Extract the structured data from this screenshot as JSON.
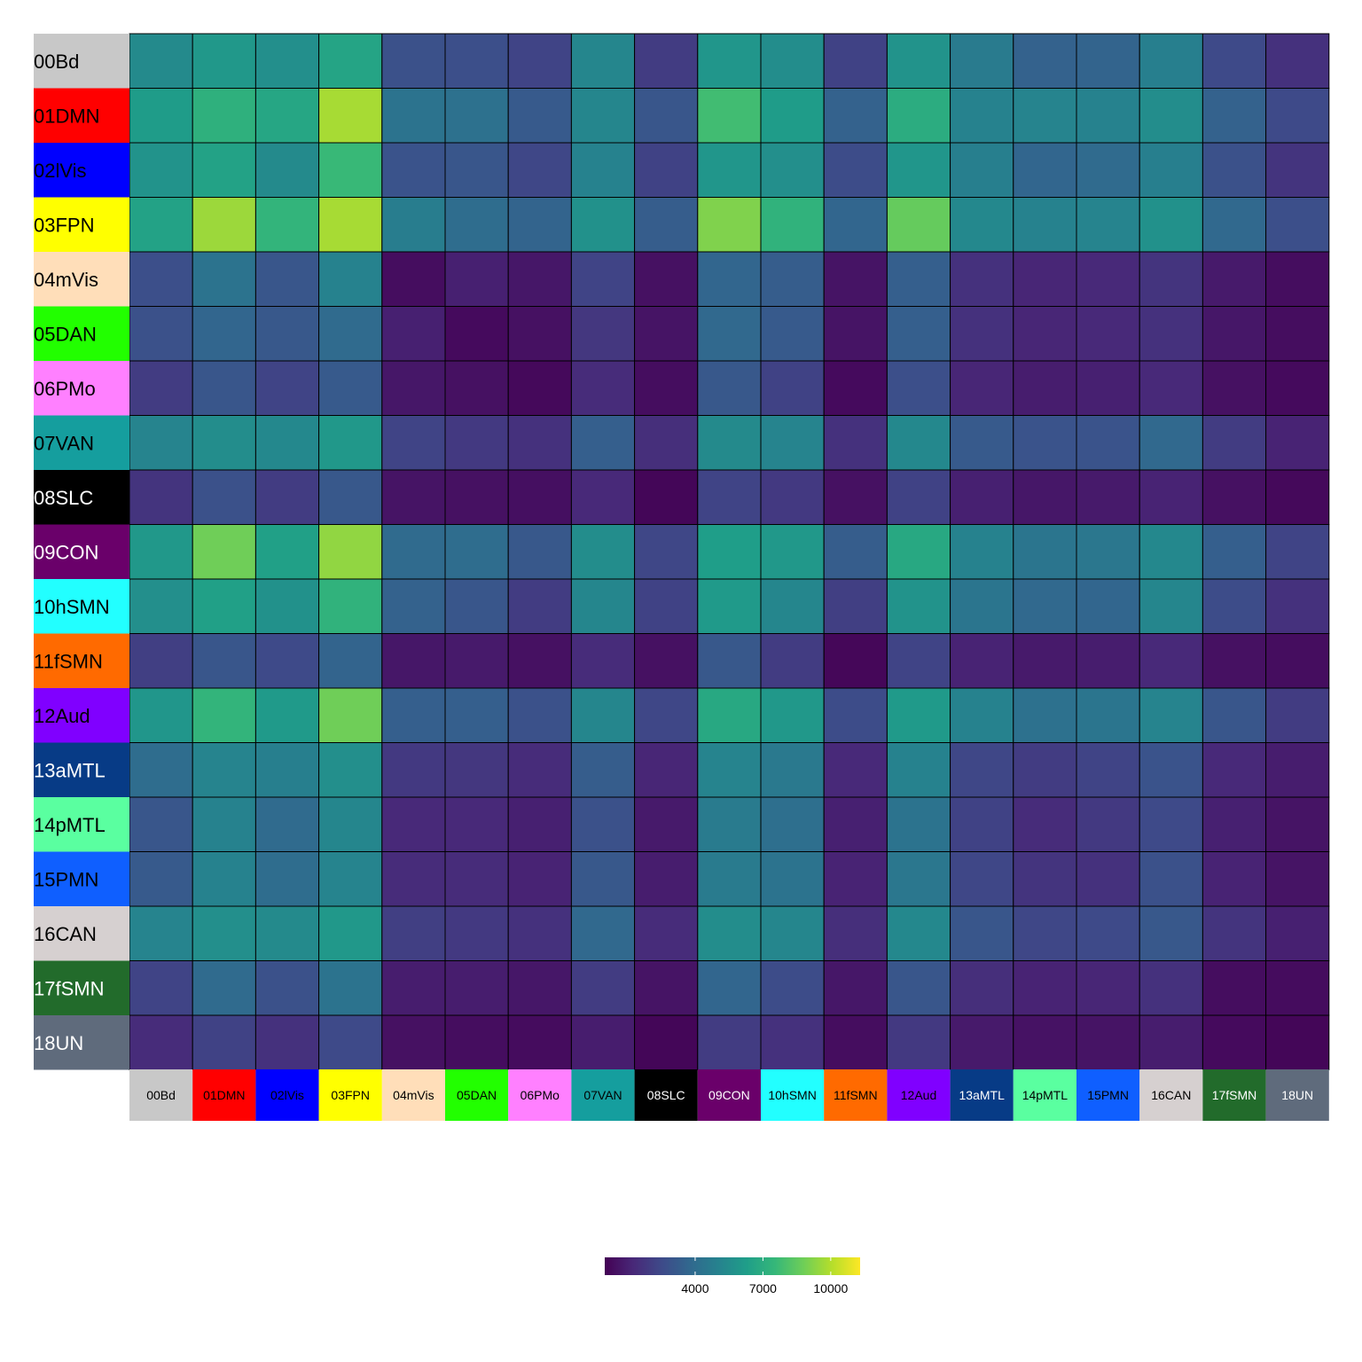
{
  "chart_data": {
    "type": "heatmap",
    "title": "",
    "xlabel": "",
    "ylabel": "",
    "labels": [
      "00Bd",
      "01DMN",
      "02lVis",
      "03FPN",
      "04mVis",
      "05DAN",
      "06PMo",
      "07VAN",
      "08SLC",
      "09CON",
      "10hSMN",
      "11fSMN",
      "12Aud",
      "13aMTL",
      "14pMTL",
      "15PMN",
      "16CAN",
      "17fSMN",
      "18UN"
    ],
    "label_colors": [
      "#C8C8C8",
      "#FF0000",
      "#0000FF",
      "#FFFF00",
      "#FFDEB9",
      "#22FF00",
      "#FF80FF",
      "#159E9E",
      "#000000",
      "#6A006A",
      "#22FFFF",
      "#FF6A00",
      "#8000FF",
      "#073B86",
      "#5AFFA0",
      "#0F5FFF",
      "#D6D0D0",
      "#226B2B",
      "#5F6B7C"
    ],
    "label_text_colors": [
      "#000000",
      "#000000",
      "#000000",
      "#000000",
      "#000000",
      "#000000",
      "#000000",
      "#000000",
      "#FFFFFF",
      "#FFFFFF",
      "#000000",
      "#000000",
      "#000000",
      "#FFFFFF",
      "#000000",
      "#000000",
      "#000000",
      "#FFFFFF",
      "#FFFFFF"
    ],
    "values": [
      [
        5400,
        6000,
        5600,
        6600,
        2800,
        2700,
        2300,
        5200,
        2000,
        5900,
        5500,
        2200,
        5800,
        4700,
        3500,
        3600,
        4900,
        2500,
        1600
      ],
      [
        6200,
        7200,
        6700,
        9800,
        4300,
        4200,
        3200,
        5200,
        3000,
        7800,
        6200,
        3500,
        7000,
        5000,
        5100,
        5000,
        5500,
        3500,
        2500
      ],
      [
        5800,
        6500,
        5400,
        7600,
        2900,
        3000,
        2400,
        5000,
        2200,
        5900,
        5600,
        2600,
        5900,
        4900,
        3700,
        3900,
        4900,
        2800,
        1700
      ],
      [
        6500,
        9600,
        7400,
        9800,
        4800,
        4000,
        3600,
        5700,
        3300,
        9100,
        7300,
        3700,
        8600,
        5300,
        5000,
        5100,
        5700,
        3800,
        2700
      ],
      [
        2700,
        4300,
        3000,
        5000,
        400,
        1000,
        700,
        2300,
        500,
        3700,
        3300,
        600,
        3400,
        1600,
        1200,
        1300,
        1700,
        800,
        400
      ],
      [
        2800,
        3700,
        3100,
        3900,
        1000,
        300,
        500,
        1800,
        600,
        3800,
        3200,
        600,
        3400,
        1600,
        1200,
        1300,
        1600,
        700,
        400
      ],
      [
        2000,
        3000,
        2300,
        3200,
        700,
        500,
        250,
        1400,
        400,
        3100,
        2200,
        300,
        2700,
        1200,
        900,
        1000,
        1300,
        500,
        300
      ],
      [
        5100,
        5500,
        5300,
        6000,
        2300,
        1900,
        1600,
        3400,
        1500,
        5400,
        5100,
        1600,
        5300,
        3200,
        2900,
        2900,
        3800,
        2000,
        1100
      ],
      [
        1700,
        2800,
        2000,
        3100,
        600,
        500,
        450,
        1300,
        150,
        2300,
        1900,
        500,
        2200,
        1000,
        700,
        800,
        1100,
        500,
        250
      ],
      [
        6000,
        8800,
        6400,
        9400,
        3900,
        4000,
        3100,
        5500,
        2400,
        6300,
        6000,
        3300,
        6800,
        5000,
        4400,
        4500,
        5300,
        3400,
        2300
      ],
      [
        5600,
        6400,
        5700,
        7300,
        3500,
        3000,
        2000,
        5200,
        2200,
        6100,
        5200,
        2100,
        5800,
        4400,
        3800,
        3700,
        5200,
        2600,
        1600
      ],
      [
        2100,
        3000,
        2500,
        3600,
        700,
        800,
        500,
        1400,
        500,
        3100,
        2000,
        180,
        2300,
        1100,
        800,
        900,
        1300,
        500,
        400
      ],
      [
        5900,
        7400,
        6100,
        8800,
        3400,
        3400,
        2800,
        5200,
        2400,
        6800,
        6000,
        2600,
        6100,
        5000,
        4200,
        4400,
        5100,
        3000,
        2000
      ],
      [
        4000,
        5100,
        4900,
        5600,
        1900,
        1800,
        1400,
        3300,
        1200,
        5100,
        4600,
        1300,
        5000,
        2400,
        2000,
        2300,
        2900,
        1300,
        900
      ],
      [
        3000,
        5000,
        3900,
        5200,
        1300,
        1300,
        1000,
        2800,
        800,
        4700,
        4100,
        1000,
        4300,
        2200,
        1400,
        1900,
        2500,
        1000,
        600
      ],
      [
        3200,
        5000,
        4000,
        5100,
        1400,
        1400,
        1100,
        3100,
        900,
        4700,
        4300,
        1100,
        4500,
        2400,
        1700,
        1600,
        2800,
        1100,
        600
      ],
      [
        5100,
        5600,
        5400,
        6000,
        2100,
        1900,
        1600,
        3800,
        1400,
        5500,
        5200,
        1500,
        5300,
        3000,
        2400,
        2500,
        3100,
        1700,
        1000
      ],
      [
        2300,
        3900,
        2800,
        4300,
        900,
        900,
        700,
        2000,
        600,
        3700,
        2600,
        700,
        3000,
        1500,
        1100,
        1200,
        1600,
        400,
        350
      ],
      [
        1400,
        2200,
        1600,
        2500,
        500,
        400,
        350,
        900,
        150,
        2000,
        1600,
        400,
        1900,
        800,
        550,
        600,
        900,
        300,
        150
      ]
    ],
    "colorbar": {
      "min": 0,
      "max": 11300,
      "breaks": [
        "4000",
        "7000",
        "10000"
      ],
      "palette": "viridis"
    }
  }
}
